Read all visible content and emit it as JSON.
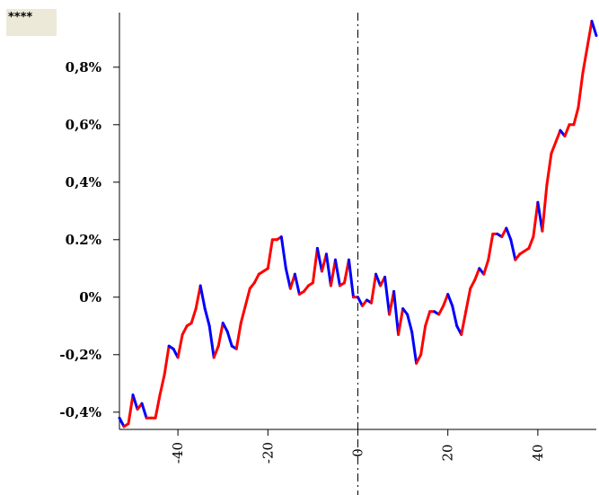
{
  "badge_text": "****",
  "chart_data": {
    "type": "line",
    "title": "",
    "xlabel": "",
    "ylabel": "",
    "xlim": [
      -53,
      53
    ],
    "ylim": [
      -0.46,
      0.99
    ],
    "y_ticks": [
      -0.4,
      -0.2,
      0,
      0.2,
      0.4,
      0.6,
      0.8
    ],
    "y_tick_labels": [
      "-0,4%",
      "-0,2%",
      "0%",
      "0.2%",
      "0,4%",
      "0,6%",
      "0,8%"
    ],
    "x_ticks": [
      -40,
      -20,
      0,
      20,
      40
    ],
    "x_tick_labels": [
      "-40",
      "-20",
      "0",
      "20",
      "40"
    ],
    "event_line_x": 0,
    "grid": false,
    "colors": {
      "rise": "#ff0000",
      "fall": "#0000ff",
      "axis": "#000000"
    },
    "series": [
      {
        "x": [
          -53,
          -52,
          -51,
          -50,
          -49,
          -48,
          -47,
          -46,
          -45,
          -44,
          -43,
          -42,
          -41,
          -40,
          -39,
          -38,
          -37,
          -36,
          -35,
          -34,
          -33,
          -32,
          -31,
          -30,
          -29,
          -28,
          -27,
          -26,
          -25,
          -24,
          -23,
          -22,
          -21,
          -20,
          -19,
          -18,
          -17,
          -16,
          -15,
          -14,
          -13,
          -12,
          -11,
          -10,
          -9,
          -8,
          -7,
          -6,
          -5,
          -4,
          -3,
          -2,
          -1,
          0,
          1,
          2,
          3,
          4,
          5,
          6,
          7,
          8,
          9,
          10,
          11,
          12,
          13,
          14,
          15,
          16,
          17,
          18,
          19,
          20,
          21,
          22,
          23,
          24,
          25,
          26,
          27,
          28,
          29,
          30,
          31,
          32,
          33,
          34,
          35,
          36,
          37,
          38,
          39,
          40,
          41,
          42,
          43,
          44,
          45,
          46,
          47,
          48,
          49,
          50,
          51,
          52,
          53
        ],
        "y": [
          -0.42,
          -0.45,
          -0.44,
          -0.34,
          -0.39,
          -0.37,
          -0.42,
          -0.42,
          -0.42,
          -0.34,
          -0.27,
          -0.17,
          -0.18,
          -0.21,
          -0.13,
          -0.1,
          -0.09,
          -0.04,
          0.04,
          -0.04,
          -0.1,
          -0.21,
          -0.17,
          -0.09,
          -0.12,
          -0.17,
          -0.18,
          -0.09,
          -0.03,
          0.03,
          0.05,
          0.08,
          0.09,
          0.1,
          0.2,
          0.2,
          0.21,
          0.1,
          0.03,
          0.08,
          0.01,
          0.02,
          0.04,
          0.05,
          0.17,
          0.09,
          0.15,
          0.04,
          0.13,
          0.04,
          0.05,
          0.13,
          0.0,
          0.0,
          -0.03,
          -0.01,
          -0.02,
          0.08,
          0.04,
          0.07,
          -0.06,
          0.02,
          -0.13,
          -0.04,
          -0.06,
          -0.12,
          -0.23,
          -0.2,
          -0.1,
          -0.05,
          -0.05,
          -0.06,
          -0.03,
          0.01,
          -0.03,
          -0.1,
          -0.13,
          -0.05,
          0.03,
          0.06,
          0.1,
          0.08,
          0.13,
          0.22,
          0.22,
          0.21,
          0.24,
          0.2,
          0.13,
          0.15,
          0.16,
          0.17,
          0.21,
          0.33,
          0.23,
          0.39,
          0.5,
          0.54,
          0.58,
          0.56,
          0.6,
          0.6,
          0.66,
          0.78,
          0.87,
          0.96,
          0.91
        ]
      }
    ]
  }
}
